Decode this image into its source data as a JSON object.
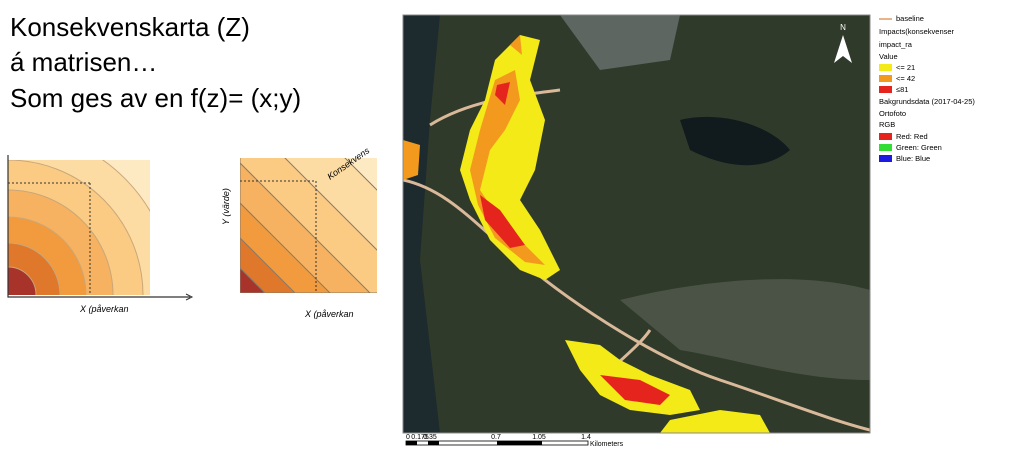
{
  "title_lines": [
    "Konsekvenskarta (Z)",
    "á matrisen…",
    "Som ges av en f(z)= (x;y)"
  ],
  "diagram_1": {
    "x_label": "X (påverkan"
  },
  "diagram_2": {
    "y_label": "Y (värde)",
    "band_label": "Konsekvens",
    "x_label": "X (påverkan"
  },
  "map": {
    "north": "N",
    "legend": [
      "baseline",
      "Impacts(konsekvenser",
      "impact_ra",
      "Value",
      "<= 21",
      "<= 42",
      "≤81",
      "Bakgrundsdata (2017-04-25)",
      "Ortofoto",
      "RGB",
      "Red:   Red",
      "Green:  Green",
      "Blue:  Blue"
    ],
    "scale": {
      "ticks": [
        "0",
        "0.175",
        "0.35",
        "0.7",
        "1.05",
        "1.4"
      ],
      "unit": "Kilometers"
    }
  }
}
